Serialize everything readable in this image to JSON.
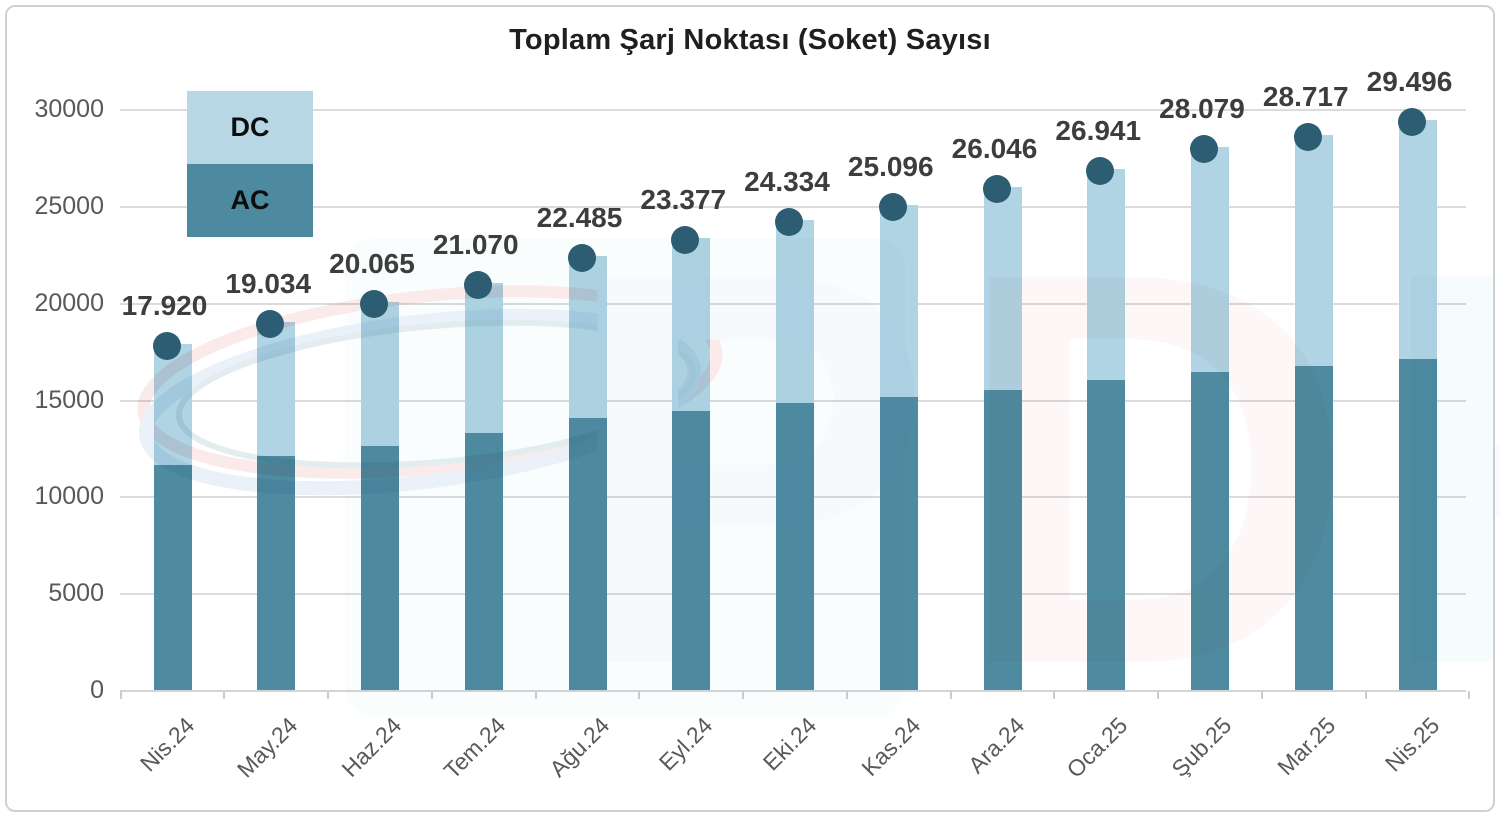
{
  "title": "Toplam Şarj Noktası (Soket) Sayısı",
  "legend": {
    "dc_label": "DC",
    "ac_label": "AC"
  },
  "colors": {
    "ac_bar": "#4e8ba1",
    "dc_bar": "#b0d4e3",
    "legend_dc": "#b7d7e4",
    "legend_ac": "#4d8aa0",
    "total_marker": "#2d5d72",
    "total_label_text": "#3d3d3d",
    "axis_label_text": "#595959",
    "gridline": "#dbdbdb",
    "title_text": "#1f1f1f"
  },
  "watermark": {
    "description": "EPDK logo watermark (light blue and pink letters with swirl)"
  },
  "chart_data": {
    "type": "bar",
    "subtype": "stacked-columns-with-total-markers",
    "title": "Toplam Şarj Noktası (Soket) Sayısı",
    "categories": [
      "Nis.24",
      "May.24",
      "Haz.24",
      "Tem.24",
      "Ağu.24",
      "Eyl.24",
      "Eki.24",
      "Kas.24",
      "Ara.24",
      "Oca.25",
      "Şub.25",
      "Mar.25",
      "Nis.25"
    ],
    "series": [
      {
        "name": "AC",
        "color": "#4e8ba1",
        "values": [
          11650,
          12150,
          12650,
          13300,
          14100,
          14450,
          14850,
          15200,
          15550,
          16050,
          16450,
          16800,
          17150
        ]
      },
      {
        "name": "DC",
        "color": "#b0d4e3",
        "values": [
          6270,
          6884,
          7415,
          7770,
          8385,
          8927,
          9484,
          9896,
          10496,
          10891,
          11629,
          11917,
          12346
        ]
      }
    ],
    "segment_values_estimated_from_pixels": true,
    "totals": [
      17920,
      19034,
      20065,
      21070,
      22485,
      23377,
      24334,
      25096,
      26046,
      26941,
      28079,
      28717,
      29496
    ],
    "total_labels": [
      "17.920",
      "19.034",
      "20.065",
      "21.070",
      "22.485",
      "23.377",
      "24.334",
      "25.096",
      "26.046",
      "26.941",
      "28.079",
      "28.717",
      "29.496"
    ],
    "y_ticks": [
      0,
      5000,
      10000,
      15000,
      20000,
      25000,
      30000
    ],
    "ylim": [
      0,
      30000
    ],
    "grid": true,
    "legend_position": "top-left",
    "x_label_rotation_deg": -45
  }
}
